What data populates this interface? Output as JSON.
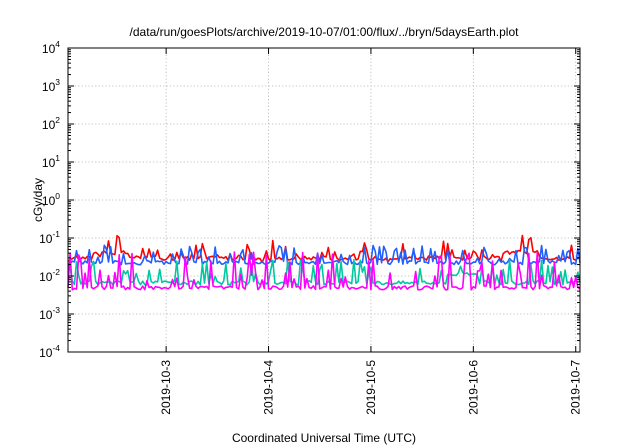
{
  "chart_data": {
    "type": "line",
    "title": "/data/run/goesPlots/archive/2019-10-07/01:00/flux/../bryn/5daysEarth.plot",
    "xlabel": "Coordinated Universal Time (UTC)",
    "ylabel": "cGy/day",
    "yscale": "log",
    "ylim_exponents": [
      -4,
      4
    ],
    "y_ticks": [
      {
        "base": "10",
        "exp": "-4"
      },
      {
        "base": "10",
        "exp": "-3"
      },
      {
        "base": "10",
        "exp": "-2"
      },
      {
        "base": "10",
        "exp": "-1"
      },
      {
        "base": "10",
        "exp": "0"
      },
      {
        "base": "10",
        "exp": "1"
      },
      {
        "base": "10",
        "exp": "2"
      },
      {
        "base": "10",
        "exp": "3"
      },
      {
        "base": "10",
        "exp": "4"
      }
    ],
    "xlim_days": [
      "2019-10-02 01:00",
      "2019-10-07 01:00"
    ],
    "x_ticks": [
      "2019-10-3",
      "2019-10-4",
      "2019-10-5",
      "2019-10-6",
      "2019-10-7"
    ],
    "grid": true,
    "series": [
      {
        "color": "#ff0000",
        "baseline": 0.029,
        "spike": 0.045,
        "high_periods": [
          [
            0.05,
            0.12
          ],
          [
            0.85,
            0.92
          ]
        ],
        "high_value": 0.04
      },
      {
        "color": "#2060ff",
        "baseline": 0.022,
        "spike": 0.055,
        "high_periods": [],
        "high_value": 0.022
      },
      {
        "color": "#00c8a0",
        "baseline": 0.0065,
        "spike": 0.025,
        "high_periods": [
          [
            0.74,
            0.8
          ]
        ],
        "high_value": 0.011
      },
      {
        "color": "#ff00ff",
        "baseline": 0.0048,
        "spike": 0.04,
        "high_periods": [],
        "high_value": 0.0048
      }
    ]
  }
}
